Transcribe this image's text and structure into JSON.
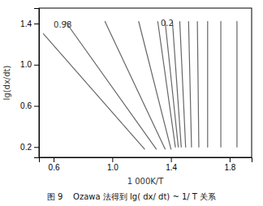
{
  "chart_data": {
    "type": "line",
    "title": "图 9    Ozawa 法得到 lg( dx/ dt) ~ 1/ T 关系",
    "x_label": "1 000K/T",
    "y_label": "lg(dx/dt)",
    "xlim": [
      0.5,
      1.95
    ],
    "ylim": [
      0.1,
      1.55
    ],
    "xticks": [
      0.6,
      {
        "value": 1.0,
        "label": "1.0"
      },
      1.4,
      1.8
    ],
    "yticks": [
      0.2,
      0.6,
      {
        "value": 1.0,
        "label": "1.0"
      },
      1.4
    ],
    "color": "#666666",
    "series": [
      {
        "x": [
          0.53,
          1.22
        ],
        "values": [
          1.3,
          0.18
        ]
      },
      {
        "x": [
          0.68,
          1.3
        ],
        "values": [
          1.42,
          0.18
        ]
      },
      {
        "x": [
          0.95,
          1.36
        ],
        "values": [
          1.42,
          0.18
        ]
      },
      {
        "x": [
          1.18,
          1.4
        ],
        "values": [
          1.42,
          0.18
        ]
      },
      {
        "x": [
          1.31,
          1.43
        ],
        "values": [
          1.42,
          0.2
        ]
      },
      {
        "x": [
          1.36,
          1.45
        ],
        "values": [
          1.42,
          0.2
        ]
      },
      {
        "x": [
          1.41,
          1.47
        ],
        "values": [
          1.42,
          0.2
        ]
      },
      {
        "x": [
          1.46,
          1.5
        ],
        "values": [
          1.42,
          0.2
        ]
      },
      {
        "x": [
          1.52,
          1.54
        ],
        "values": [
          1.42,
          0.2
        ]
      },
      {
        "x": [
          1.58,
          1.59
        ],
        "values": [
          1.42,
          0.2
        ]
      },
      {
        "x": [
          1.65,
          1.65
        ],
        "values": [
          1.42,
          0.2
        ]
      },
      {
        "x": [
          1.74,
          1.74
        ],
        "values": [
          1.42,
          0.2
        ]
      },
      {
        "x": [
          1.85,
          1.85
        ],
        "values": [
          1.42,
          0.2
        ]
      }
    ],
    "annotations": [
      {
        "text": "0.98",
        "x": 0.6,
        "y": 1.36
      },
      {
        "text": "0.2",
        "x": 1.33,
        "y": 1.38
      }
    ]
  }
}
